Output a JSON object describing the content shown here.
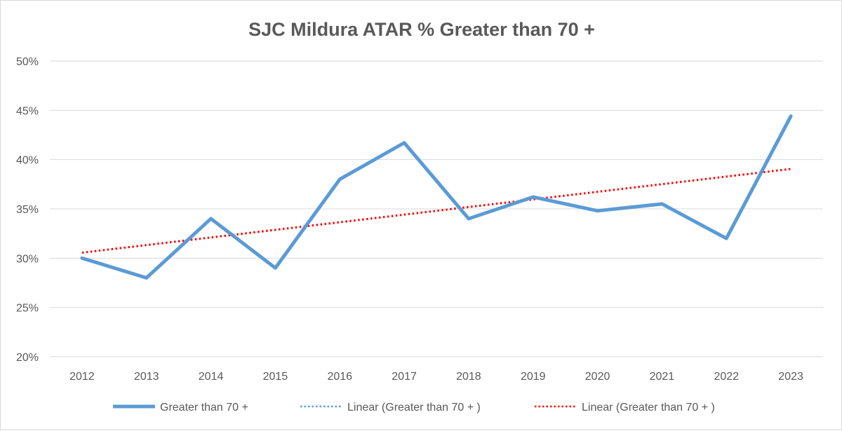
{
  "chart_data": {
    "type": "line",
    "title": "SJC Mildura ATAR % Greater than 70 +",
    "xlabel": "",
    "ylabel": "",
    "categories": [
      "2012",
      "2013",
      "2014",
      "2015",
      "2016",
      "2017",
      "2018",
      "2019",
      "2020",
      "2021",
      "2022",
      "2023"
    ],
    "y_ticks": [
      "20%",
      "25%",
      "30%",
      "35%",
      "40%",
      "45%",
      "50%"
    ],
    "ylim": [
      20,
      50
    ],
    "y_unit": "%",
    "grid": true,
    "legend_position": "bottom",
    "series": [
      {
        "name": "Greater than 70 +",
        "values": [
          30.0,
          28.0,
          34.0,
          29.0,
          38.0,
          41.7,
          34.0,
          36.2,
          34.8,
          35.5,
          32.0,
          44.4
        ],
        "color": "#5b9bd5",
        "style": "solid"
      }
    ],
    "trendlines": [
      {
        "name": "Linear (Greater than 70 + )",
        "of_series": "Greater than 70 +",
        "type": "linear",
        "color": "#5b9bd5",
        "style": "dotted",
        "visible": false
      },
      {
        "name": "Linear (Greater than 70 + )",
        "of_series": "Greater than 70 +",
        "type": "linear",
        "color": "#ff0000",
        "style": "dotted",
        "visible": true
      }
    ]
  }
}
